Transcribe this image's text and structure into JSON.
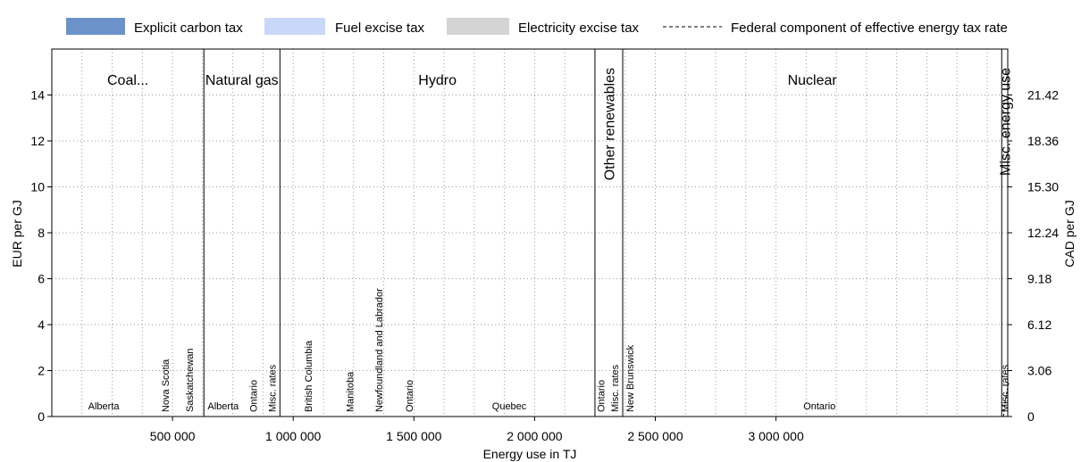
{
  "chart_data": {
    "type": "bar",
    "legend": {
      "placement": "top",
      "items": [
        {
          "name": "Explicit carbon tax",
          "color": "#6b93c9",
          "kind": "swatch"
        },
        {
          "name": "Fuel excise tax",
          "color": "#c9d7f8",
          "kind": "swatch"
        },
        {
          "name": "Electricity excise tax",
          "color": "#d4d4d4",
          "kind": "swatch"
        },
        {
          "name": "Federal component of effective energy tax rate",
          "color": "#000000",
          "kind": "dashed-line"
        }
      ]
    },
    "xlabel": "Energy use in TJ",
    "ylabel_left": "EUR per GJ",
    "ylabel_right": "CAD per GJ",
    "xlim": [
      0,
      3960000
    ],
    "ylim": [
      0,
      16
    ],
    "x_ticks": [
      {
        "value": 500000,
        "label": "500 000"
      },
      {
        "value": 1000000,
        "label": "1 000 000"
      },
      {
        "value": 1500000,
        "label": "1 500 000"
      },
      {
        "value": 2000000,
        "label": "2 000 000"
      },
      {
        "value": 2500000,
        "label": "2 500 000"
      },
      {
        "value": 3000000,
        "label": "3 000 000"
      }
    ],
    "y_ticks_left": [
      {
        "value": 0,
        "label": "0"
      },
      {
        "value": 2,
        "label": "2"
      },
      {
        "value": 4,
        "label": "4"
      },
      {
        "value": 6,
        "label": "6"
      },
      {
        "value": 8,
        "label": "8"
      },
      {
        "value": 10,
        "label": "10"
      },
      {
        "value": 12,
        "label": "12"
      },
      {
        "value": 14,
        "label": "14"
      }
    ],
    "y_ticks_right": [
      {
        "value": 0,
        "label": "0"
      },
      {
        "value": 2,
        "label": "3.06"
      },
      {
        "value": 4,
        "label": "6.12"
      },
      {
        "value": 6,
        "label": "9.18"
      },
      {
        "value": 8,
        "label": "12.24"
      },
      {
        "value": 10,
        "label": "15.30"
      },
      {
        "value": 12,
        "label": "18.36"
      },
      {
        "value": 14,
        "label": "21.42"
      }
    ],
    "grid": true,
    "groups": [
      {
        "label": "Coal...",
        "x_start": 0,
        "x_end": 630000,
        "label_orientation": "horizontal"
      },
      {
        "label": "Natural gas",
        "x_start": 630000,
        "x_end": 945000,
        "label_orientation": "horizontal"
      },
      {
        "label": "Hydro",
        "x_start": 945000,
        "x_end": 2250000,
        "label_orientation": "horizontal"
      },
      {
        "label": "Other renewables",
        "x_start": 2250000,
        "x_end": 2365000,
        "label_orientation": "vertical"
      },
      {
        "label": "Nuclear",
        "x_start": 2365000,
        "x_end": 3935000,
        "label_orientation": "horizontal"
      },
      {
        "label": "Misc. energy use",
        "x_start": 3935000,
        "x_end": 3960000,
        "label_orientation": "vertical"
      }
    ],
    "segments": [
      {
        "group": "Coal...",
        "region": "Alberta",
        "x_start": 0,
        "x_end": 430000,
        "value": 0,
        "label_orientation": "horizontal"
      },
      {
        "group": "Coal...",
        "region": "Nova Scotia",
        "x_start": 430000,
        "x_end": 510000,
        "value": 0,
        "label_orientation": "vertical"
      },
      {
        "group": "Coal...",
        "region": "Saskatchewan",
        "x_start": 510000,
        "x_end": 630000,
        "value": 0,
        "label_orientation": "vertical"
      },
      {
        "group": "Natural gas",
        "region": "Alberta",
        "x_start": 630000,
        "x_end": 790000,
        "value": 0,
        "label_orientation": "horizontal"
      },
      {
        "group": "Natural gas",
        "region": "Ontario",
        "x_start": 790000,
        "x_end": 880000,
        "value": 0,
        "label_orientation": "vertical"
      },
      {
        "group": "Natural gas",
        "region": "Misc. rates",
        "x_start": 880000,
        "x_end": 945000,
        "value": 0,
        "label_orientation": "vertical"
      },
      {
        "group": "Hydro",
        "region": "British Columbia",
        "x_start": 945000,
        "x_end": 1180000,
        "value": 0,
        "label_orientation": "vertical"
      },
      {
        "group": "Hydro",
        "region": "Manitoba",
        "x_start": 1180000,
        "x_end": 1290000,
        "value": 0,
        "label_orientation": "vertical"
      },
      {
        "group": "Hydro",
        "region": "Newfoundland and Labrador",
        "x_start": 1290000,
        "x_end": 1420000,
        "value": 0,
        "label_orientation": "vertical"
      },
      {
        "group": "Hydro",
        "region": "Ontario",
        "x_start": 1420000,
        "x_end": 1540000,
        "value": 0,
        "label_orientation": "vertical"
      },
      {
        "group": "Hydro",
        "region": "Quebec",
        "x_start": 1540000,
        "x_end": 2250000,
        "value": 0,
        "label_orientation": "horizontal"
      },
      {
        "group": "Other renewables",
        "region": "Ontario",
        "x_start": 2250000,
        "x_end": 2300000,
        "value": 0,
        "label_orientation": "vertical"
      },
      {
        "group": "Other renewables",
        "region": "Misc. rates",
        "x_start": 2300000,
        "x_end": 2365000,
        "value": 0,
        "label_orientation": "vertical"
      },
      {
        "group": "Nuclear",
        "region": "New Brunswick",
        "x_start": 2365000,
        "x_end": 2425000,
        "value": 0,
        "label_orientation": "vertical"
      },
      {
        "group": "Nuclear",
        "region": "Ontario",
        "x_start": 2425000,
        "x_end": 3935000,
        "value": 0,
        "label_orientation": "horizontal"
      },
      {
        "group": "Misc. energy use",
        "region": "Misc. rates",
        "x_start": 3935000,
        "x_end": 3960000,
        "value": 0,
        "label_orientation": "vertical"
      }
    ],
    "federal_component_line": [
      {
        "x": 3935000,
        "value": 0
      },
      {
        "x": 3960000,
        "value": 0
      }
    ]
  }
}
